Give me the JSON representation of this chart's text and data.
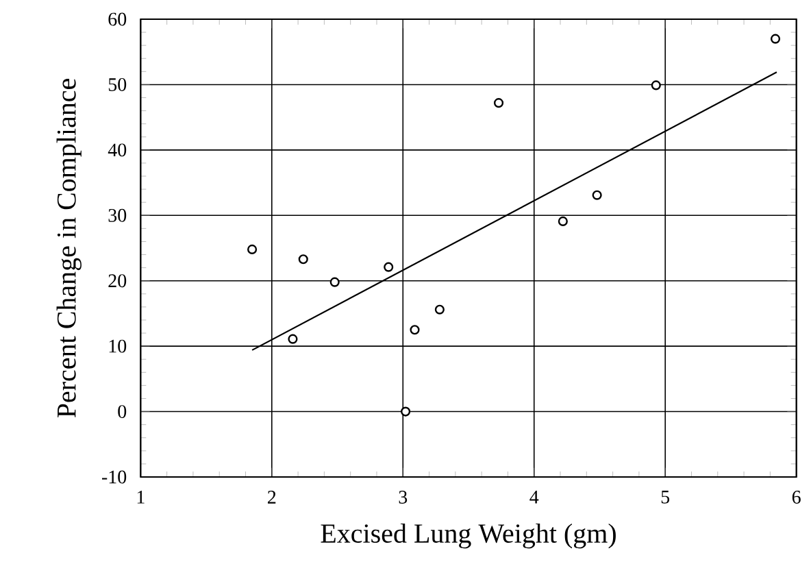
{
  "chart_data": {
    "type": "scatter",
    "xlabel": "Excised Lung Weight (gm)",
    "ylabel": "Percent Change in Compliance",
    "series": [
      {
        "color": "#000000",
        "marker": "circle",
        "x": [
          1.85,
          2.16,
          2.24,
          2.48,
          2.89,
          3.02,
          3.09,
          3.28,
          3.73,
          4.22,
          4.48,
          4.93,
          5.84
        ],
        "values": [
          24.8,
          11.1,
          23.3,
          19.8,
          22.1,
          0,
          12.5,
          15.6,
          47.2,
          29.1,
          33.1,
          49.9,
          57.0
        ]
      },
      {
        "type": "line",
        "color": "#000000",
        "marker": "none",
        "line_style": "solid",
        "x": [
          1.85,
          5.85
        ],
        "values": [
          9.4,
          51.9
        ]
      }
    ],
    "xlim": [
      1,
      6
    ],
    "ylim": [
      -10,
      60
    ],
    "xticks": [
      1,
      2,
      3,
      4,
      5,
      6
    ],
    "yticks": [
      -10,
      0,
      10,
      20,
      30,
      40,
      50,
      60
    ],
    "grid": true
  }
}
